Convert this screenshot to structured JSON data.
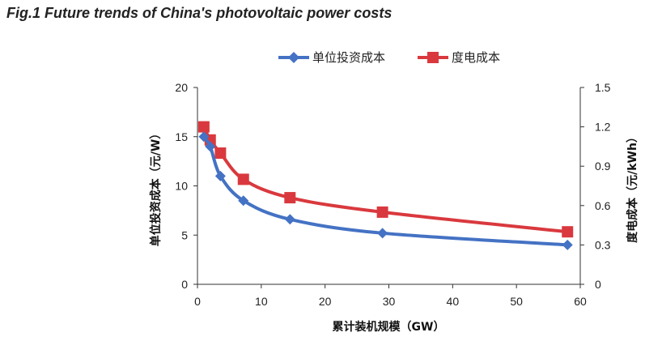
{
  "figure": {
    "title": "Fig.1 Future trends of China's photovoltaic power costs"
  },
  "chart_data": {
    "type": "line",
    "x": [
      1,
      2,
      3.6,
      7.2,
      14.5,
      29,
      58
    ],
    "xlabel": "累计装机规模（GW）",
    "xlim": [
      0,
      60
    ],
    "xticks": [
      0,
      10,
      20,
      30,
      40,
      50,
      60
    ],
    "ylabel": "单位投资成本（元/W）",
    "ylim": [
      0,
      20
    ],
    "yticks": [
      0,
      5,
      10,
      15,
      20
    ],
    "y2label": "度电成本（元/kWh）",
    "y2lim": [
      0,
      1.5
    ],
    "y2ticks": [
      "0",
      "0.3",
      "0.6",
      "0.9",
      "1.2",
      "1.5"
    ],
    "grid": false,
    "legend_position": "top-center",
    "series": [
      {
        "name": "单位投资成本",
        "axis": "left",
        "marker": "diamond",
        "color": "#4472C4",
        "values": [
          15,
          14,
          11,
          8.5,
          6.6,
          5.2,
          4
        ]
      },
      {
        "name": "度电成本",
        "axis": "right",
        "marker": "square",
        "color": "#D9393E",
        "values": [
          1.2,
          1.1,
          1.0,
          0.8,
          0.66,
          0.55,
          0.4
        ]
      }
    ]
  }
}
